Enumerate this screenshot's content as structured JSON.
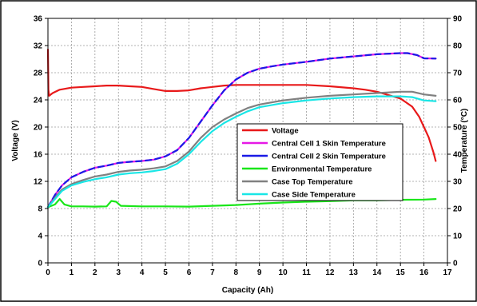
{
  "chart_data": {
    "type": "line",
    "title": "",
    "xlabel": "Capacity (Ah)",
    "ylabel_left": "Voltage (V)",
    "ylabel_right": "Temperature (°C)",
    "xlim": [
      0,
      17
    ],
    "ylim_left": [
      0,
      36
    ],
    "ylim_right": [
      0,
      90
    ],
    "grid": true,
    "legend_placement": "center-right",
    "x_ticks": [
      "0",
      "1",
      "2",
      "3",
      "4",
      "5",
      "6",
      "7",
      "8",
      "9",
      "10",
      "11",
      "12",
      "13",
      "14",
      "15",
      "16",
      "17"
    ],
    "y_left_ticks": [
      "0",
      "4",
      "8",
      "12",
      "16",
      "20",
      "24",
      "28",
      "32",
      "36"
    ],
    "y_right_ticks": [
      "0",
      "10",
      "20",
      "30",
      "40",
      "50",
      "60",
      "70",
      "80",
      "90"
    ],
    "series": [
      {
        "name": "Voltage",
        "axis": "left",
        "color": "#e8191a",
        "points": [
          [
            0,
            31.4
          ],
          [
            0.02,
            25.5
          ],
          [
            0.05,
            24.6
          ],
          [
            0.2,
            25.0
          ],
          [
            0.5,
            25.5
          ],
          [
            1,
            25.8
          ],
          [
            1.5,
            25.9
          ],
          [
            2,
            26.0
          ],
          [
            2.5,
            26.1
          ],
          [
            3,
            26.1
          ],
          [
            3.5,
            26.0
          ],
          [
            4,
            25.9
          ],
          [
            4.5,
            25.6
          ],
          [
            5,
            25.3
          ],
          [
            5.5,
            25.3
          ],
          [
            6,
            25.4
          ],
          [
            6.5,
            25.7
          ],
          [
            7,
            25.9
          ],
          [
            7.5,
            26.1
          ],
          [
            8,
            26.2
          ],
          [
            9,
            26.2
          ],
          [
            10,
            26.2
          ],
          [
            11,
            26.2
          ],
          [
            12,
            26.0
          ],
          [
            13,
            25.7
          ],
          [
            13.5,
            25.5
          ],
          [
            14,
            25.2
          ],
          [
            14.5,
            24.7
          ],
          [
            15,
            24.2
          ],
          [
            15.5,
            23.0
          ],
          [
            15.8,
            21.5
          ],
          [
            16,
            20.0
          ],
          [
            16.2,
            18.5
          ],
          [
            16.4,
            16.3
          ],
          [
            16.5,
            15.0
          ]
        ]
      },
      {
        "name": "Central Cell 1 Skin Temperature",
        "axis": "right",
        "color": "#e619e6",
        "points": [
          [
            0,
            20.5
          ],
          [
            0.3,
            25
          ],
          [
            0.6,
            28.5
          ],
          [
            1,
            31.5
          ],
          [
            1.5,
            33.5
          ],
          [
            2,
            35
          ],
          [
            2.5,
            35.8
          ],
          [
            3,
            36.8
          ],
          [
            3.5,
            37.2
          ],
          [
            4,
            37.5
          ],
          [
            4.5,
            38
          ],
          [
            5,
            39.2
          ],
          [
            5.5,
            41.5
          ],
          [
            6,
            46
          ],
          [
            6.5,
            52
          ],
          [
            7,
            58
          ],
          [
            7.5,
            63.5
          ],
          [
            8,
            67.5
          ],
          [
            8.5,
            70
          ],
          [
            9,
            71.5
          ],
          [
            9.5,
            72.3
          ],
          [
            10,
            73
          ],
          [
            11,
            74
          ],
          [
            12,
            75.2
          ],
          [
            13,
            76
          ],
          [
            14,
            76.8
          ],
          [
            15,
            77.2
          ],
          [
            15.3,
            77.2
          ],
          [
            15.7,
            76.5
          ],
          [
            16,
            75.3
          ],
          [
            16.5,
            75.2
          ]
        ]
      },
      {
        "name": "Central Cell 2 Skin Temperature",
        "axis": "right",
        "color": "#1a1ae6",
        "points": [
          [
            0,
            20.5
          ],
          [
            0.3,
            25
          ],
          [
            0.6,
            28.5
          ],
          [
            1,
            31.5
          ],
          [
            1.5,
            33.5
          ],
          [
            2,
            35
          ],
          [
            2.5,
            35.8
          ],
          [
            3,
            36.8
          ],
          [
            3.5,
            37.2
          ],
          [
            4,
            37.5
          ],
          [
            4.5,
            38
          ],
          [
            5,
            39.2
          ],
          [
            5.5,
            41.5
          ],
          [
            6,
            46
          ],
          [
            6.5,
            52
          ],
          [
            7,
            58
          ],
          [
            7.5,
            63.5
          ],
          [
            8,
            67.5
          ],
          [
            8.5,
            70
          ],
          [
            9,
            71.5
          ],
          [
            9.5,
            72.3
          ],
          [
            10,
            73
          ],
          [
            11,
            74
          ],
          [
            12,
            75.2
          ],
          [
            13,
            76
          ],
          [
            14,
            76.8
          ],
          [
            15,
            77.2
          ],
          [
            15.3,
            77.2
          ],
          [
            15.7,
            76.5
          ],
          [
            16,
            75.3
          ],
          [
            16.5,
            75.2
          ]
        ]
      },
      {
        "name": "Environmental Temperature",
        "axis": "right",
        "color": "#1ae61a",
        "points": [
          [
            0,
            20.5
          ],
          [
            0.3,
            21.5
          ],
          [
            0.5,
            23.5
          ],
          [
            0.7,
            21.5
          ],
          [
            1,
            20.8
          ],
          [
            1.5,
            20.8
          ],
          [
            2,
            20.7
          ],
          [
            2.5,
            20.8
          ],
          [
            2.7,
            22.8
          ],
          [
            2.9,
            22.5
          ],
          [
            3.1,
            21
          ],
          [
            4,
            20.8
          ],
          [
            5,
            20.8
          ],
          [
            6,
            20.7
          ],
          [
            7,
            21
          ],
          [
            8,
            21.3
          ],
          [
            9,
            21.8
          ],
          [
            10,
            22.2
          ],
          [
            11,
            22.5
          ],
          [
            12,
            22.7
          ],
          [
            13,
            23
          ],
          [
            14,
            23
          ],
          [
            15,
            23.2
          ],
          [
            16,
            23.3
          ],
          [
            16.5,
            23.5
          ]
        ]
      },
      {
        "name": "Case Top Temperature",
        "axis": "right",
        "color": "#808080",
        "points": [
          [
            0,
            20.5
          ],
          [
            0.3,
            24
          ],
          [
            0.6,
            27
          ],
          [
            1,
            29
          ],
          [
            1.5,
            30.5
          ],
          [
            2,
            31.8
          ],
          [
            2.5,
            32.5
          ],
          [
            3,
            33.5
          ],
          [
            3.5,
            34
          ],
          [
            4,
            34.3
          ],
          [
            4.5,
            34.8
          ],
          [
            5,
            35.5
          ],
          [
            5.5,
            37.5
          ],
          [
            6,
            41
          ],
          [
            6.5,
            46
          ],
          [
            7,
            50
          ],
          [
            7.5,
            52.8
          ],
          [
            8,
            55
          ],
          [
            8.5,
            57
          ],
          [
            9,
            58.3
          ],
          [
            10,
            59.8
          ],
          [
            11,
            60.8
          ],
          [
            12,
            61.5
          ],
          [
            13,
            62
          ],
          [
            14,
            62.5
          ],
          [
            15,
            63
          ],
          [
            15.5,
            63
          ],
          [
            16,
            62
          ],
          [
            16.5,
            61.5
          ]
        ]
      },
      {
        "name": "Case Side Temperature",
        "axis": "right",
        "color": "#19e6e6",
        "points": [
          [
            0,
            20.5
          ],
          [
            0.3,
            23.5
          ],
          [
            0.6,
            26.5
          ],
          [
            1,
            28.5
          ],
          [
            1.5,
            29.8
          ],
          [
            2,
            30.8
          ],
          [
            2.5,
            31.5
          ],
          [
            3,
            32.5
          ],
          [
            3.5,
            33
          ],
          [
            4,
            33.3
          ],
          [
            4.5,
            33.8
          ],
          [
            5,
            34.5
          ],
          [
            5.5,
            36.5
          ],
          [
            6,
            40
          ],
          [
            6.5,
            44.5
          ],
          [
            7,
            48.5
          ],
          [
            7.5,
            51.5
          ],
          [
            8,
            53.8
          ],
          [
            8.5,
            55.8
          ],
          [
            9,
            57.3
          ],
          [
            10,
            58.8
          ],
          [
            11,
            59.8
          ],
          [
            12,
            60.5
          ],
          [
            13,
            61
          ],
          [
            14,
            61.3
          ],
          [
            15,
            61.3
          ],
          [
            15.5,
            61
          ],
          [
            16,
            59.8
          ],
          [
            16.5,
            59.5
          ]
        ]
      }
    ]
  }
}
